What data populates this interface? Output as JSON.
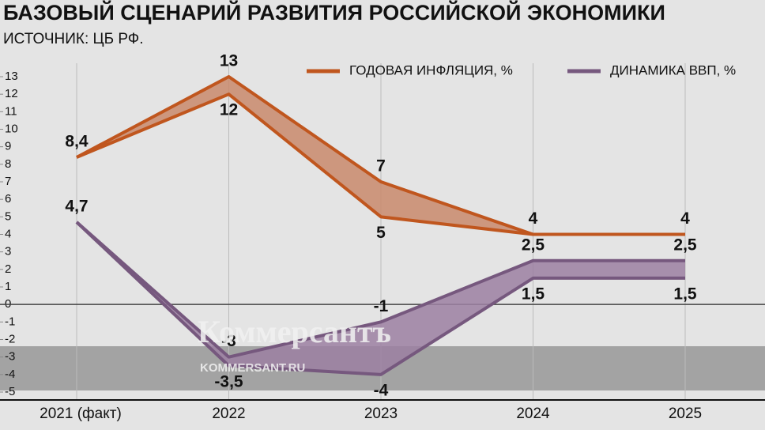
{
  "chart_data": {
    "type": "range",
    "title": "БАЗОВЫЙ СЦЕНАРИЙ РАЗВИТИЯ РОССИЙСКОЙ ЭКОНОМИКИ",
    "subtitle": "ИСТОЧНИК: ЦБ РФ.",
    "watermark": "Коммерсантъ",
    "watermark_url": "KOMMERSANT.RU",
    "categories": [
      "2021 (факт)",
      "2022",
      "2023",
      "2024",
      "2025"
    ],
    "ylim": [
      -5,
      13
    ],
    "yticks": [
      -5,
      -4,
      -3,
      -2,
      -1,
      0,
      1,
      2,
      3,
      4,
      5,
      6,
      7,
      8,
      9,
      10,
      11,
      12,
      13
    ],
    "grid": true,
    "series": [
      {
        "name": "ГОДОВАЯ ИНФЛЯЦИЯ, %",
        "color": "#c0561e",
        "fill": "#c98a6c",
        "values": [
          8.4,
          13,
          7,
          4,
          4
        ],
        "value_labels": [
          "8,4",
          "13",
          "7",
          "4",
          "4"
        ],
        "low": [
          8.4,
          12,
          5,
          4,
          4
        ],
        "low_labels": [
          null,
          "12",
          "5",
          null,
          null
        ]
      },
      {
        "name": "ДИНАМИКА ВВП, %",
        "color": "#76587e",
        "fill": "#9c80a2",
        "values": [
          4.7,
          -3,
          -1,
          2.5,
          2.5
        ],
        "value_labels": [
          "4,7",
          "-3",
          "-1",
          "2,5",
          "2,5"
        ],
        "low": [
          4.7,
          -3.5,
          -4,
          1.5,
          1.5
        ],
        "low_labels": [
          null,
          "-3,5",
          "-4",
          "1,5",
          "1,5"
        ]
      }
    ]
  }
}
